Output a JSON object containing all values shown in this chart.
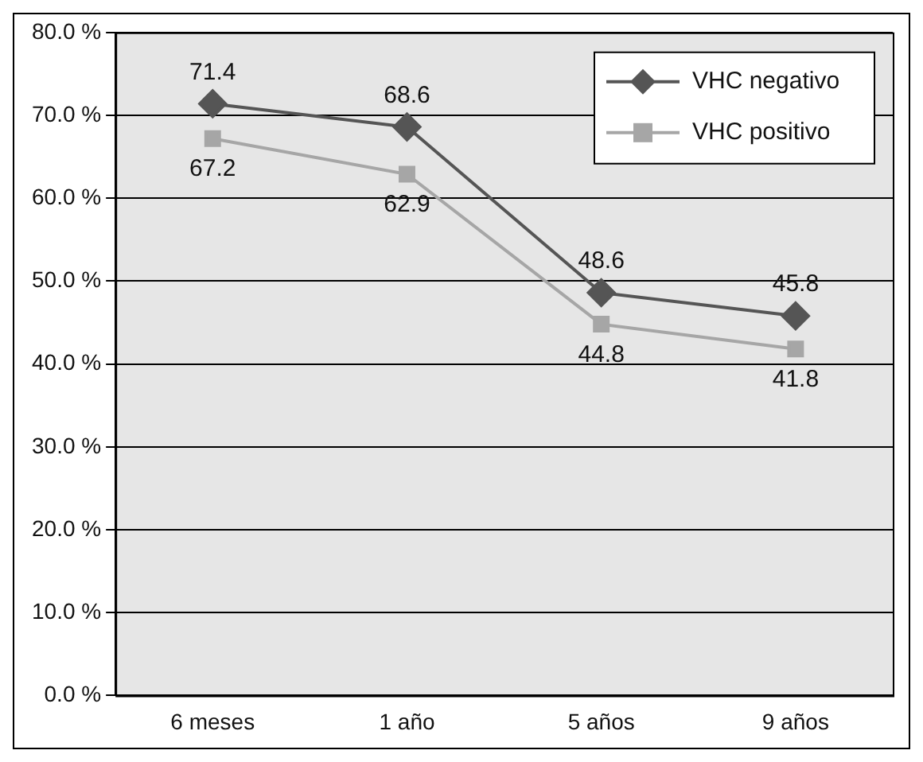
{
  "chart_data": {
    "type": "line",
    "categories": [
      "6 meses",
      "1 año",
      "5 años",
      "9 años"
    ],
    "series": [
      {
        "name": "VHC negativo",
        "color": "#555555",
        "marker": "diamond",
        "values": [
          71.4,
          68.6,
          48.6,
          45.8
        ]
      },
      {
        "name": "VHC positivo",
        "color": "#a6a6a6",
        "marker": "square",
        "values": [
          67.2,
          62.9,
          44.8,
          41.8
        ]
      }
    ],
    "ylim": [
      0,
      80
    ],
    "yticks": [
      {
        "value": 0,
        "label": "0.0 %"
      },
      {
        "value": 10,
        "label": "10.0 %"
      },
      {
        "value": 20,
        "label": "20.0 %"
      },
      {
        "value": 30,
        "label": "30.0 %"
      },
      {
        "value": 40,
        "label": "40.0 %"
      },
      {
        "value": 50,
        "label": "50.0 %"
      },
      {
        "value": 60,
        "label": "60.0 %"
      },
      {
        "value": 70,
        "label": "70.0 %"
      },
      {
        "value": 80,
        "label": "80.0 %"
      }
    ],
    "grid": "y",
    "legend": "top right",
    "data_labels": true,
    "line_style": "solid"
  }
}
